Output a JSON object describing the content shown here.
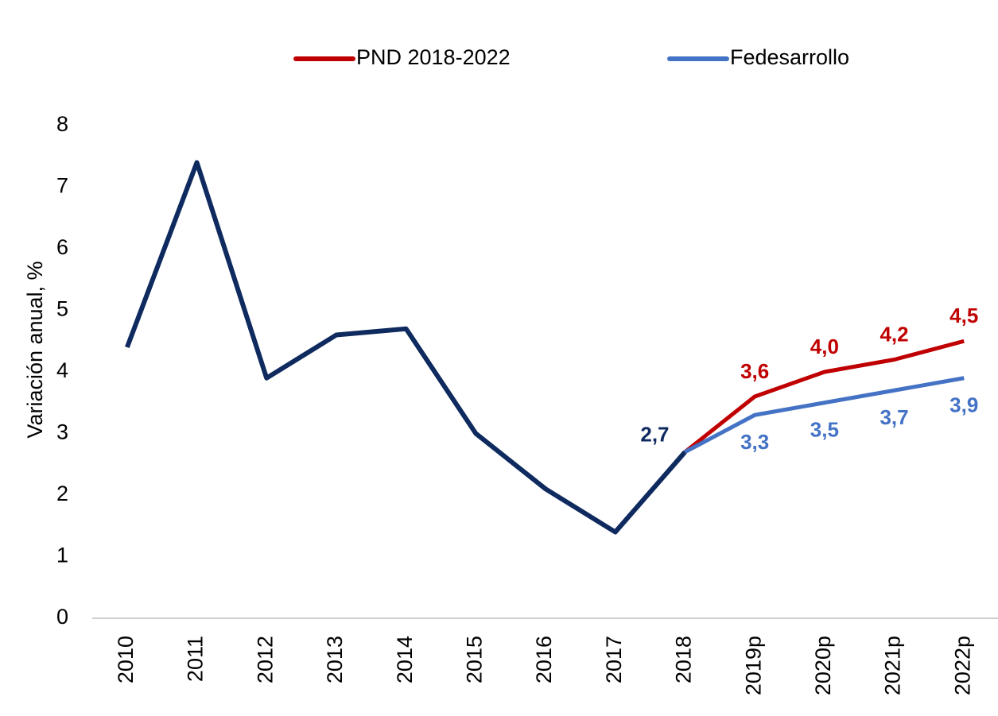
{
  "chart_data": {
    "type": "line",
    "y_label": "Variación anual, %",
    "categories": [
      "2010",
      "2011",
      "2012",
      "2013",
      "2014",
      "2015",
      "2016",
      "2017",
      "2018",
      "2019p",
      "2020p",
      "2021p",
      "2022p"
    ],
    "series": [
      {
        "color": "#0e2a5e",
        "values": [
          4.4,
          7.4,
          3.9,
          4.6,
          4.7,
          3.0,
          2.1,
          1.4,
          2.7,
          null,
          null,
          null,
          null
        ],
        "value_labels": [
          null,
          null,
          null,
          null,
          null,
          null,
          null,
          null,
          "2,7",
          null,
          null,
          null,
          null
        ]
      },
      {
        "name": "PND 2018-2022",
        "color": "#c00000",
        "values": [
          null,
          null,
          null,
          null,
          null,
          null,
          null,
          null,
          2.7,
          3.6,
          4.0,
          4.2,
          4.5
        ],
        "value_labels": [
          null,
          null,
          null,
          null,
          null,
          null,
          null,
          null,
          null,
          "3,6",
          "4,0",
          "4,2",
          "4,5"
        ]
      },
      {
        "name": "Fedesarrollo",
        "color": "#4472c4",
        "values": [
          null,
          null,
          null,
          null,
          null,
          null,
          null,
          null,
          2.7,
          3.3,
          3.5,
          3.7,
          3.9
        ],
        "value_labels": [
          null,
          null,
          null,
          null,
          null,
          null,
          null,
          null,
          null,
          "3,3",
          "3,5",
          "3,7",
          "3,9"
        ]
      }
    ],
    "ylim": [
      0,
      8
    ],
    "yticks": [
      0,
      1,
      2,
      3,
      4,
      5,
      6,
      7,
      8
    ],
    "grid": false,
    "legend": "top"
  }
}
